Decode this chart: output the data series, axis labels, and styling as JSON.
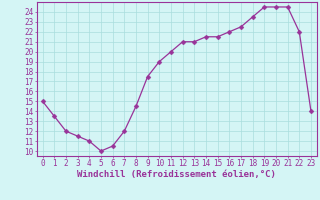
{
  "x": [
    0,
    1,
    2,
    3,
    4,
    5,
    6,
    7,
    8,
    9,
    10,
    11,
    12,
    13,
    14,
    15,
    16,
    17,
    18,
    19,
    20,
    21,
    22,
    23
  ],
  "y": [
    15,
    13.5,
    12,
    11.5,
    11,
    10,
    10.5,
    12,
    14.5,
    17.5,
    19,
    20,
    21,
    21,
    21.5,
    21.5,
    22,
    22.5,
    23.5,
    24.5,
    24.5,
    24.5,
    22,
    14
  ],
  "line_color": "#993399",
  "marker": "D",
  "marker_size": 2.5,
  "bg_color": "#d4f5f5",
  "grid_color": "#aadddd",
  "xlabel": "Windchill (Refroidissement éolien,°C)",
  "xlabel_color": "#993399",
  "tick_color": "#993399",
  "spine_color": "#993399",
  "xlim": [
    -0.5,
    23.5
  ],
  "ylim": [
    9.5,
    25.0
  ],
  "yticks": [
    10,
    11,
    12,
    13,
    14,
    15,
    16,
    17,
    18,
    19,
    20,
    21,
    22,
    23,
    24
  ],
  "xticks": [
    0,
    1,
    2,
    3,
    4,
    5,
    6,
    7,
    8,
    9,
    10,
    11,
    12,
    13,
    14,
    15,
    16,
    17,
    18,
    19,
    20,
    21,
    22,
    23
  ],
  "tick_fontsize": 5.5,
  "xlabel_fontsize": 6.5,
  "line_width": 0.9
}
